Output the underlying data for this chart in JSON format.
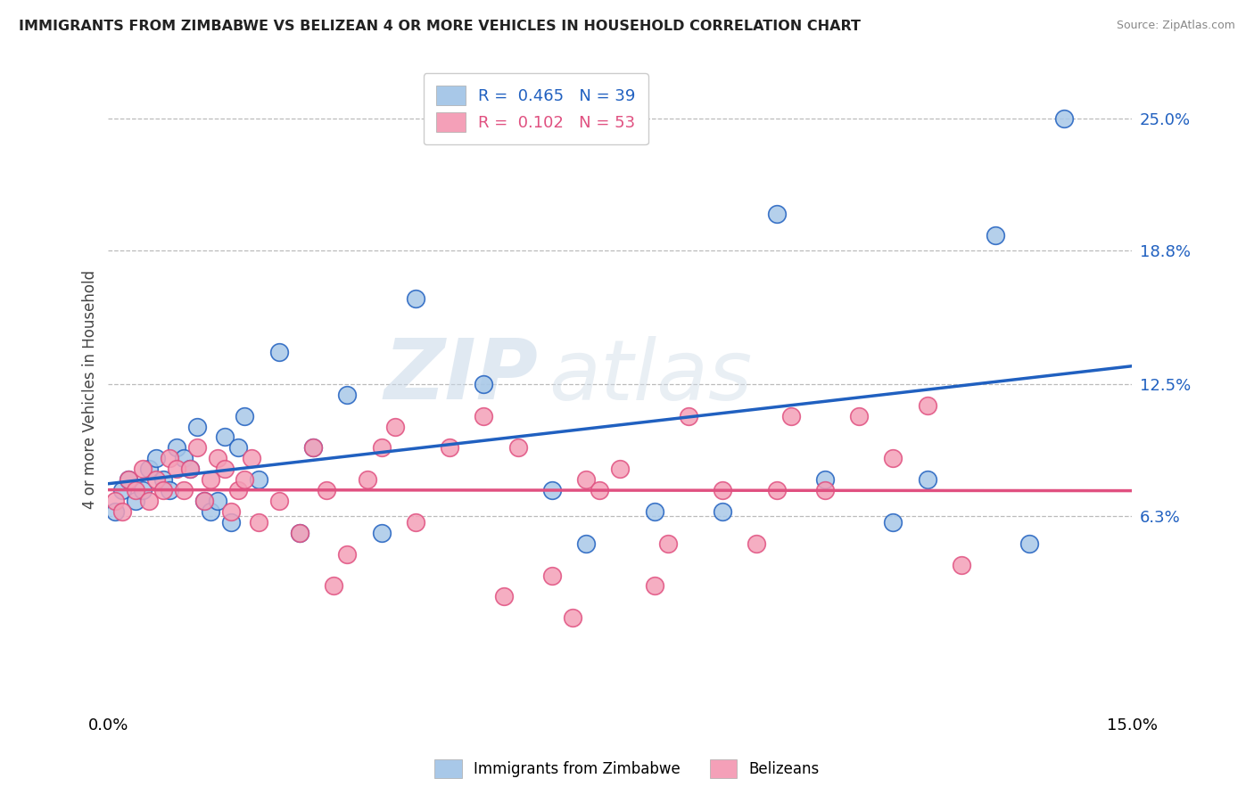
{
  "title": "IMMIGRANTS FROM ZIMBABWE VS BELIZEAN 4 OR MORE VEHICLES IN HOUSEHOLD CORRELATION CHART",
  "source": "Source: ZipAtlas.com",
  "ylabel": "4 or more Vehicles in Household",
  "xlim": [
    0.0,
    15.0
  ],
  "ylim": [
    -3.0,
    27.5
  ],
  "y_tick_values_right": [
    6.3,
    12.5,
    18.8,
    25.0
  ],
  "series1_color": "#a8c8e8",
  "series2_color": "#f4a0b8",
  "line1_color": "#2060c0",
  "line2_color": "#e05080",
  "series1_name": "Immigrants from Zimbabwe",
  "series2_name": "Belizeans",
  "watermark_zip": "ZIP",
  "watermark_atlas": "atlas",
  "series1_R": 0.465,
  "series1_N": 39,
  "series2_R": 0.102,
  "series2_N": 53,
  "scatter1_x": [
    0.1,
    0.2,
    0.3,
    0.4,
    0.5,
    0.6,
    0.7,
    0.8,
    0.9,
    1.0,
    1.1,
    1.2,
    1.3,
    1.4,
    1.5,
    1.6,
    1.7,
    1.8,
    1.9,
    2.0,
    2.2,
    2.5,
    2.8,
    3.0,
    3.5,
    4.0,
    4.5,
    5.5,
    6.5,
    7.0,
    8.0,
    9.0,
    9.8,
    10.5,
    11.5,
    12.0,
    13.0,
    13.5,
    14.0
  ],
  "scatter1_y": [
    6.5,
    7.5,
    8.0,
    7.0,
    7.5,
    8.5,
    9.0,
    8.0,
    7.5,
    9.5,
    9.0,
    8.5,
    10.5,
    7.0,
    6.5,
    7.0,
    10.0,
    6.0,
    9.5,
    11.0,
    8.0,
    14.0,
    5.5,
    9.5,
    12.0,
    5.5,
    16.5,
    12.5,
    7.5,
    5.0,
    6.5,
    6.5,
    20.5,
    8.0,
    6.0,
    8.0,
    19.5,
    5.0,
    25.0
  ],
  "scatter2_x": [
    0.1,
    0.2,
    0.3,
    0.4,
    0.5,
    0.6,
    0.7,
    0.8,
    0.9,
    1.0,
    1.1,
    1.2,
    1.3,
    1.4,
    1.5,
    1.6,
    1.7,
    1.8,
    1.9,
    2.0,
    2.1,
    2.2,
    2.5,
    2.8,
    3.0,
    3.2,
    3.5,
    3.8,
    4.0,
    4.2,
    4.5,
    5.0,
    5.5,
    6.0,
    6.5,
    7.0,
    7.5,
    8.0,
    8.5,
    9.0,
    9.5,
    10.0,
    10.5,
    11.0,
    11.5,
    12.0,
    12.5,
    5.8,
    6.8,
    7.2,
    8.2,
    9.8,
    3.3
  ],
  "scatter2_y": [
    7.0,
    6.5,
    8.0,
    7.5,
    8.5,
    7.0,
    8.0,
    7.5,
    9.0,
    8.5,
    7.5,
    8.5,
    9.5,
    7.0,
    8.0,
    9.0,
    8.5,
    6.5,
    7.5,
    8.0,
    9.0,
    6.0,
    7.0,
    5.5,
    9.5,
    7.5,
    4.5,
    8.0,
    9.5,
    10.5,
    6.0,
    9.5,
    11.0,
    9.5,
    3.5,
    8.0,
    8.5,
    3.0,
    11.0,
    7.5,
    5.0,
    11.0,
    7.5,
    11.0,
    9.0,
    11.5,
    4.0,
    2.5,
    1.5,
    7.5,
    5.0,
    7.5,
    3.0
  ]
}
